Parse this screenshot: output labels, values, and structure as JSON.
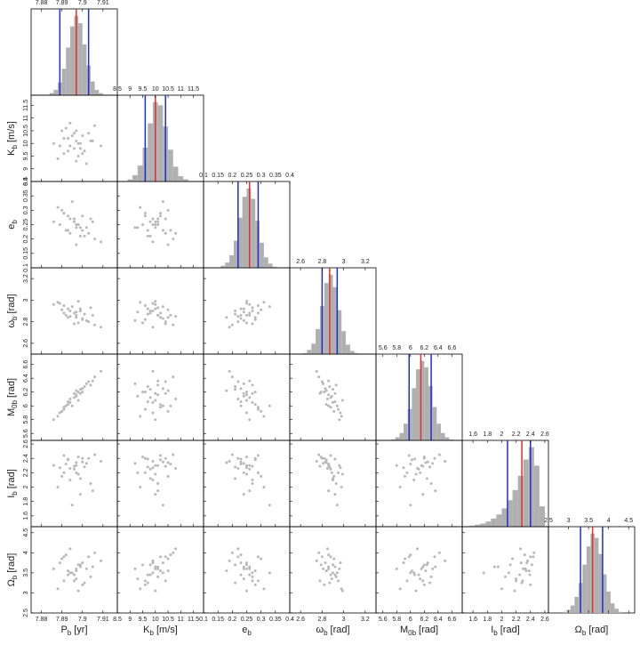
{
  "chart_data": {
    "type": "corner",
    "colors": {
      "samples": "#b8b8b8",
      "histogram": "#b0b0b0",
      "median": "#e03030",
      "interval": "#1f2ed0"
    },
    "parameters": [
      {
        "symbol": "P",
        "subscript": "b",
        "unit": "[yr]",
        "lim": [
          7.875,
          7.917
        ],
        "ticks": [
          7.88,
          7.89,
          7.9,
          7.91
        ],
        "median": 7.897,
        "interval": [
          7.889,
          7.903
        ],
        "bins": [
          7.884,
          7.886,
          7.888,
          7.89,
          7.892,
          7.894,
          7.896,
          7.898,
          7.9,
          7.902,
          7.904,
          7.906,
          7.908,
          7.91
        ],
        "counts": [
          2,
          5,
          12,
          25,
          45,
          65,
          75,
          68,
          48,
          28,
          13,
          5,
          2
        ]
      },
      {
        "symbol": "K",
        "subscript": "b",
        "unit": "[m/s]",
        "lim": [
          8.5,
          11.9
        ],
        "ticks": [
          8.5,
          9,
          9.5,
          10,
          10.5,
          11,
          11.5
        ],
        "median": 10,
        "interval": [
          9.6,
          10.4
        ],
        "bins": [
          8.9,
          9.1,
          9.3,
          9.5,
          9.7,
          9.9,
          10.1,
          10.3,
          10.5,
          10.7,
          10.9,
          11.1,
          11.3
        ],
        "counts": [
          2,
          6,
          15,
          32,
          55,
          75,
          72,
          52,
          30,
          14,
          5,
          2
        ]
      },
      {
        "symbol": "e",
        "subscript": "b",
        "unit": "",
        "lim": [
          0.1,
          0.4
        ],
        "ticks": [
          0.1,
          0.15,
          0.2,
          0.25,
          0.3,
          0.35,
          0.4
        ],
        "median": 0.26,
        "interval": [
          0.22,
          0.29
        ],
        "bins": [
          0.16,
          0.175,
          0.19,
          0.205,
          0.22,
          0.235,
          0.25,
          0.265,
          0.28,
          0.295,
          0.31,
          0.325,
          0.34,
          0.355
        ],
        "counts": [
          2,
          5,
          12,
          26,
          48,
          68,
          76,
          66,
          45,
          24,
          10,
          4,
          1
        ]
      },
      {
        "symbol": "ω",
        "subscript": "b",
        "unit": "[rad]",
        "lim": [
          2.5,
          3.3
        ],
        "ticks": [
          2.6,
          2.8,
          3,
          3.2
        ],
        "median": 2.87,
        "interval": [
          2.8,
          2.94
        ],
        "bins": [
          2.62,
          2.66,
          2.7,
          2.74,
          2.78,
          2.82,
          2.86,
          2.9,
          2.94,
          2.98,
          3.02,
          3.06,
          3.1,
          3.14
        ],
        "counts": [
          1,
          4,
          10,
          24,
          46,
          68,
          76,
          64,
          42,
          22,
          9,
          3,
          1
        ]
      },
      {
        "symbol": "M",
        "subscript": "0b",
        "unit": "[rad]",
        "lim": [
          5.5,
          6.75
        ],
        "ticks": [
          5.6,
          5.8,
          6,
          6.2,
          6.4,
          6.6
        ],
        "median": 6.15,
        "interval": [
          5.98,
          6.3
        ],
        "bins": [
          5.72,
          5.78,
          5.84,
          5.9,
          5.96,
          6.02,
          6.08,
          6.14,
          6.2,
          6.26,
          6.32,
          6.38,
          6.44,
          6.5,
          6.56,
          6.62
        ],
        "counts": [
          1,
          3,
          7,
          16,
          30,
          50,
          68,
          76,
          70,
          52,
          32,
          16,
          7,
          3,
          1
        ]
      },
      {
        "symbol": "I",
        "subscript": "b",
        "unit": "[rad]",
        "lim": [
          1.45,
          2.65
        ],
        "ticks": [
          1.6,
          1.8,
          2,
          2.2,
          2.4,
          2.6
        ],
        "median": 2.28,
        "interval": [
          2.08,
          2.4
        ],
        "bins": [
          1.55,
          1.625,
          1.7,
          1.775,
          1.85,
          1.925,
          2.0,
          2.075,
          2.15,
          2.225,
          2.3,
          2.375,
          2.45,
          2.525,
          2.6
        ],
        "counts": [
          1,
          2,
          3,
          5,
          8,
          12,
          18,
          26,
          36,
          50,
          66,
          78,
          60,
          20
        ]
      },
      {
        "symbol": "Ω",
        "subscript": "b",
        "unit": "[rad]",
        "lim": [
          2.5,
          4.65
        ],
        "ticks": [
          2.5,
          3,
          3.5,
          4,
          4.5
        ],
        "median": 3.6,
        "interval": [
          3.3,
          3.85
        ],
        "bins": [
          2.85,
          2.95,
          3.05,
          3.15,
          3.25,
          3.35,
          3.45,
          3.55,
          3.65,
          3.75,
          3.85,
          3.95,
          4.05,
          4.15,
          4.25,
          4.35
        ],
        "counts": [
          1,
          3,
          7,
          15,
          28,
          45,
          62,
          74,
          70,
          55,
          36,
          20,
          9,
          4,
          1
        ]
      }
    ],
    "samples": [
      [
        7.897,
        10.1,
        0.25,
        2.86,
        6.16,
        2.3,
        3.6
      ],
      [
        7.891,
        9.6,
        0.29,
        2.95,
        5.95,
        2.2,
        3.3
      ],
      [
        7.903,
        10.4,
        0.22,
        2.8,
        6.35,
        2.4,
        3.9
      ],
      [
        7.894,
        9.9,
        0.27,
        2.9,
        6.05,
        2.1,
        3.5
      ],
      [
        7.9,
        10.3,
        0.23,
        2.83,
        6.25,
        2.35,
        3.75
      ],
      [
        7.888,
        9.4,
        0.31,
        2.98,
        5.85,
        2.0,
        3.1
      ],
      [
        7.906,
        10.7,
        0.2,
        2.77,
        6.42,
        2.45,
        4.0
      ],
      [
        7.896,
        9.8,
        0.26,
        2.88,
        6.12,
        2.25,
        3.45
      ],
      [
        7.899,
        10.0,
        0.24,
        2.92,
        6.18,
        1.9,
        3.65
      ],
      [
        7.893,
        10.2,
        0.28,
        2.84,
        6.02,
        2.38,
        3.55
      ],
      [
        7.901,
        9.7,
        0.21,
        2.87,
        6.28,
        2.28,
        3.25
      ],
      [
        7.89,
        10.5,
        0.3,
        2.91,
        5.92,
        2.15,
        3.85
      ],
      [
        7.898,
        9.5,
        0.25,
        2.79,
        6.2,
        2.42,
        3.7
      ],
      [
        7.904,
        10.1,
        0.27,
        2.93,
        6.3,
        2.05,
        3.4
      ],
      [
        7.892,
        10.6,
        0.23,
        2.86,
        6.0,
        2.32,
        3.95
      ],
      [
        7.897,
        9.3,
        0.24,
        2.89,
        6.14,
        2.2,
        3.35
      ],
      [
        7.886,
        10.0,
        0.26,
        2.96,
        5.8,
        2.3,
        3.6
      ],
      [
        7.909,
        9.9,
        0.19,
        2.75,
        6.5,
        2.36,
        3.8
      ],
      [
        7.895,
        10.3,
        0.33,
        2.94,
        6.0,
        1.75,
        3.5
      ],
      [
        7.9,
        9.6,
        0.28,
        2.82,
        6.2,
        2.4,
        3.2
      ],
      [
        7.894,
        10.8,
        0.22,
        2.85,
        6.1,
        2.26,
        4.1
      ],
      [
        7.898,
        10.0,
        0.25,
        2.99,
        6.08,
        2.18,
        3.05
      ],
      [
        7.902,
        9.2,
        0.24,
        2.81,
        6.32,
        2.33,
        3.6
      ],
      [
        7.891,
        10.2,
        0.29,
        2.88,
        5.98,
        2.44,
        3.9
      ],
      [
        7.899,
        9.8,
        0.21,
        2.9,
        6.24,
        2.12,
        3.7
      ],
      [
        7.896,
        10.4,
        0.27,
        2.78,
        6.18,
        2.29,
        3.3
      ],
      [
        7.893,
        9.7,
        0.23,
        2.92,
        6.06,
        2.39,
        3.45
      ],
      [
        7.905,
        10.1,
        0.26,
        2.86,
        6.36,
        1.95,
        3.65
      ],
      [
        7.889,
        9.9,
        0.25,
        2.97,
        5.9,
        2.27,
        3.75
      ],
      [
        7.897,
        10.5,
        0.18,
        2.84,
        6.22,
        2.34,
        3.55
      ]
    ]
  }
}
